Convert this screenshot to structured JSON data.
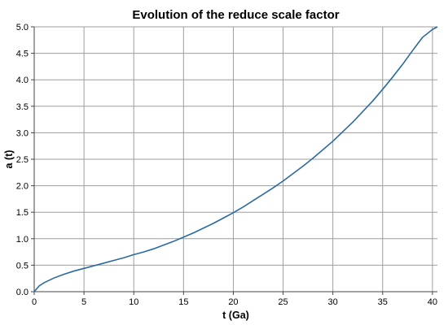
{
  "chart_data": {
    "type": "line",
    "title": "Evolution of the reduce scale factor",
    "xlabel": "t (Ga)",
    "ylabel": "a (t)",
    "xlim": [
      0,
      40.5
    ],
    "ylim": [
      0,
      5
    ],
    "xticks": [
      0,
      5,
      10,
      15,
      20,
      25,
      30,
      35,
      40
    ],
    "yticks": [
      0.0,
      0.5,
      1.0,
      1.5,
      2.0,
      2.5,
      3.0,
      3.5,
      4.0,
      4.5,
      5.0
    ],
    "grid": true,
    "colors": {
      "series": "#2b6aa1",
      "grid": "#9e9e9e"
    },
    "series": [
      {
        "x": [
          0,
          0.5,
          1,
          2,
          3,
          4,
          5,
          6,
          7,
          8,
          9,
          10,
          11,
          12,
          13,
          14,
          15,
          16,
          17,
          18,
          19,
          20,
          21,
          22,
          23,
          24,
          25,
          26,
          27,
          28,
          29,
          30,
          31,
          32,
          33,
          34,
          35,
          36,
          37,
          38,
          39,
          40,
          40.5
        ],
        "y": [
          0.0,
          0.11,
          0.17,
          0.26,
          0.33,
          0.39,
          0.44,
          0.49,
          0.54,
          0.59,
          0.64,
          0.7,
          0.75,
          0.81,
          0.88,
          0.95,
          1.03,
          1.11,
          1.2,
          1.29,
          1.39,
          1.49,
          1.6,
          1.72,
          1.84,
          1.96,
          2.09,
          2.23,
          2.37,
          2.52,
          2.68,
          2.84,
          3.02,
          3.2,
          3.4,
          3.6,
          3.82,
          4.05,
          4.29,
          4.55,
          4.8,
          4.95,
          5.0
        ]
      }
    ]
  }
}
